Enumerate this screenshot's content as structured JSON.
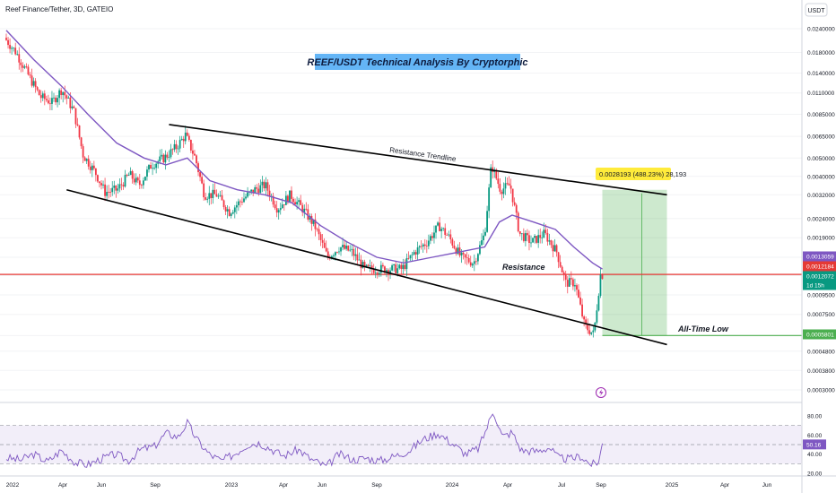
{
  "header": {
    "symbol": "Reef Finance/Tether, 3D, GATEIO",
    "currency": "USDT"
  },
  "chart_data": [
    {
      "type": "candlestick",
      "title": "REEF/USDT Technical Analysis By Cryptorphic",
      "x_ticks": [
        "2022",
        "Apr",
        "Jun",
        "Sep",
        "2023",
        "Apr",
        "Jun",
        "Sep",
        "2024",
        "Apr",
        "Jul",
        "Sep",
        "2025",
        "Apr",
        "Jun"
      ],
      "y_scale": "log",
      "y_ticks": [
        0.024,
        0.018,
        0.014,
        0.011,
        0.0085,
        0.0065,
        0.005,
        0.004,
        0.0032,
        0.0024,
        0.0019,
        0.0015,
        0.0012,
        0.00095,
        0.00075,
        0.00058,
        0.00048,
        0.00038,
        0.0003
      ],
      "y_tick_labels": [
        "0.0240000",
        "0.0180000",
        "0.0140000",
        "0.0110000",
        "0.0085000",
        "0.0065000",
        "0.0050000",
        "0.0040000",
        "0.0032000",
        "0.0024000",
        "0.0019000",
        "0.0015000",
        "0.0012000",
        "0.0009500",
        "0.0007500",
        "0.0005800",
        "0.0004800",
        "0.0003800",
        "0.0003000"
      ],
      "price_path": [
        [
          "2022-01-01",
          0.0215
        ],
        [
          "2022-01-20",
          0.018
        ],
        [
          "2022-02-10",
          0.0135
        ],
        [
          "2022-03-01",
          0.0105
        ],
        [
          "2022-03-20",
          0.0098
        ],
        [
          "2022-04-05",
          0.0115
        ],
        [
          "2022-04-25",
          0.0088
        ],
        [
          "2022-05-10",
          0.0052
        ],
        [
          "2022-05-30",
          0.0042
        ],
        [
          "2022-06-15",
          0.0033
        ],
        [
          "2022-07-05",
          0.0034
        ],
        [
          "2022-07-25",
          0.0041
        ],
        [
          "2022-08-10",
          0.0036
        ],
        [
          "2022-08-30",
          0.0046
        ],
        [
          "2022-09-20",
          0.005
        ],
        [
          "2022-10-10",
          0.0057
        ],
        [
          "2022-10-25",
          0.0066
        ],
        [
          "2022-11-10",
          0.005
        ],
        [
          "2022-11-25",
          0.0032
        ],
        [
          "2022-12-15",
          0.0032
        ],
        [
          "2023-01-05",
          0.0026
        ],
        [
          "2023-01-25",
          0.003
        ],
        [
          "2023-02-15",
          0.0034
        ],
        [
          "2023-03-05",
          0.0036
        ],
        [
          "2023-03-25",
          0.0027
        ],
        [
          "2023-04-15",
          0.0032
        ],
        [
          "2023-05-05",
          0.0027
        ],
        [
          "2023-05-25",
          0.0022
        ],
        [
          "2023-06-15",
          0.0015
        ],
        [
          "2023-07-05",
          0.0017
        ],
        [
          "2023-07-25",
          0.0016
        ],
        [
          "2023-08-15",
          0.0013
        ],
        [
          "2023-09-05",
          0.0013
        ],
        [
          "2023-09-25",
          0.0013
        ],
        [
          "2023-10-15",
          0.0013
        ],
        [
          "2023-11-05",
          0.0016
        ],
        [
          "2023-11-25",
          0.0018
        ],
        [
          "2023-12-15",
          0.0022
        ],
        [
          "2024-01-01",
          0.0019
        ],
        [
          "2024-01-20",
          0.0015
        ],
        [
          "2024-02-10",
          0.0014
        ],
        [
          "2024-02-28",
          0.002
        ],
        [
          "2024-03-10",
          0.0046
        ],
        [
          "2024-03-25",
          0.0034
        ],
        [
          "2024-04-10",
          0.0036
        ],
        [
          "2024-04-25",
          0.002
        ],
        [
          "2024-05-15",
          0.0018
        ],
        [
          "2024-06-05",
          0.002
        ],
        [
          "2024-06-25",
          0.0016
        ],
        [
          "2024-07-10",
          0.0011
        ],
        [
          "2024-07-25",
          0.0011
        ],
        [
          "2024-08-10",
          0.00065
        ],
        [
          "2024-08-25",
          0.00059
        ],
        [
          "2024-09-05",
          0.00121
        ]
      ],
      "ma_path": [
        [
          "2022-01-01",
          0.0235
        ],
        [
          "2022-02-15",
          0.0165
        ],
        [
          "2022-04-01",
          0.012
        ],
        [
          "2022-05-15",
          0.0085
        ],
        [
          "2022-07-01",
          0.006
        ],
        [
          "2022-08-15",
          0.005
        ],
        [
          "2022-09-20",
          0.0046
        ],
        [
          "2022-10-25",
          0.005
        ],
        [
          "2022-12-01",
          0.0038
        ],
        [
          "2023-01-15",
          0.0034
        ],
        [
          "2023-03-01",
          0.0032
        ],
        [
          "2023-04-15",
          0.0029
        ],
        [
          "2023-06-01",
          0.0022
        ],
        [
          "2023-07-15",
          0.0018
        ],
        [
          "2023-09-01",
          0.0015
        ],
        [
          "2023-10-15",
          0.0014
        ],
        [
          "2023-12-01",
          0.0015
        ],
        [
          "2024-01-15",
          0.0016
        ],
        [
          "2024-02-25",
          0.0017
        ],
        [
          "2024-03-20",
          0.0023
        ],
        [
          "2024-04-10",
          0.0025
        ],
        [
          "2024-05-15",
          0.0023
        ],
        [
          "2024-06-20",
          0.0021
        ],
        [
          "2024-07-20",
          0.0017
        ],
        [
          "2024-08-20",
          0.0014
        ],
        [
          "2024-09-05",
          0.0013
        ]
      ],
      "markers": [
        {
          "label": "0.0013059",
          "value": 0.0013059,
          "color": "#7e57c2"
        },
        {
          "label": "0.0012184",
          "value": 0.0012184,
          "color": "#e53935"
        },
        {
          "label": "0.0012072",
          "value": 0.0012072,
          "color": "#089981"
        },
        {
          "label": "1d 15h",
          "value": null,
          "color": "#089981"
        },
        {
          "label": "0.0005801",
          "value": 0.0005801,
          "color": "#4caf50"
        }
      ],
      "annotations": {
        "resistance_trendline": "Resistance Trendline",
        "resistance": "Resistance",
        "all_time_low": "All-Time Low",
        "target": "0.0028193 (488.23%) 28,193"
      },
      "levels": {
        "resistance": 0.0012184,
        "all_time_low": 0.0005801,
        "target": 0.0034
      },
      "trendlines": [
        {
          "name": "upper",
          "from": [
            "2022-09-25",
            0.0075
          ],
          "to": [
            "2024-12-20",
            0.0032
          ]
        },
        {
          "name": "lower",
          "from": [
            "2022-04-10",
            0.0034
          ],
          "to": [
            "2024-12-20",
            0.00052
          ]
        }
      ],
      "colors": {
        "up": "#089981",
        "down": "#f23645",
        "ma": "#7e57c2",
        "resistance": "#e53935",
        "ath": "#4caf50",
        "target_box": "#4caf50",
        "target_label": "#ffeb3b"
      }
    },
    {
      "type": "line",
      "name": "RSI",
      "y_ticks": [
        80,
        60,
        40,
        20
      ],
      "y_tick_labels": [
        "80.00",
        "60.00",
        "40.00",
        "20.00"
      ],
      "band": [
        30,
        70
      ],
      "current_value": "50.16",
      "points": [
        [
          "2022-01-01",
          36
        ],
        [
          "2022-01-25",
          34
        ],
        [
          "2022-02-15",
          40
        ],
        [
          "2022-03-10",
          32
        ],
        [
          "2022-04-01",
          44
        ],
        [
          "2022-04-25",
          31
        ],
        [
          "2022-05-15",
          29
        ],
        [
          "2022-06-05",
          35
        ],
        [
          "2022-06-30",
          40
        ],
        [
          "2022-07-20",
          33
        ],
        [
          "2022-08-10",
          45
        ],
        [
          "2022-09-01",
          48
        ],
        [
          "2022-09-20",
          62
        ],
        [
          "2022-10-10",
          58
        ],
        [
          "2022-10-25",
          73
        ],
        [
          "2022-11-10",
          55
        ],
        [
          "2022-11-30",
          40
        ],
        [
          "2022-12-20",
          33
        ],
        [
          "2023-01-10",
          40
        ],
        [
          "2023-02-01",
          50
        ],
        [
          "2023-02-20",
          52
        ],
        [
          "2023-03-10",
          46
        ],
        [
          "2023-04-01",
          38
        ],
        [
          "2023-04-25",
          45
        ],
        [
          "2023-05-15",
          35
        ],
        [
          "2023-06-10",
          27
        ],
        [
          "2023-07-01",
          40
        ],
        [
          "2023-07-25",
          34
        ],
        [
          "2023-08-15",
          36
        ],
        [
          "2023-09-05",
          33
        ],
        [
          "2023-10-01",
          38
        ],
        [
          "2023-10-25",
          44
        ],
        [
          "2023-11-15",
          55
        ],
        [
          "2023-12-10",
          62
        ],
        [
          "2024-01-01",
          52
        ],
        [
          "2024-01-25",
          40
        ],
        [
          "2024-02-15",
          46
        ],
        [
          "2024-03-01",
          70
        ],
        [
          "2024-03-10",
          86
        ],
        [
          "2024-03-25",
          58
        ],
        [
          "2024-04-10",
          63
        ],
        [
          "2024-04-25",
          44
        ],
        [
          "2024-05-20",
          43
        ],
        [
          "2024-06-10",
          47
        ],
        [
          "2024-06-25",
          36
        ],
        [
          "2024-07-15",
          35
        ],
        [
          "2024-08-01",
          38
        ],
        [
          "2024-08-15",
          30
        ],
        [
          "2024-08-28",
          29
        ],
        [
          "2024-09-05",
          50.16
        ]
      ],
      "colors": {
        "line": "#7e57c2",
        "band": "#ede7f6"
      }
    }
  ]
}
